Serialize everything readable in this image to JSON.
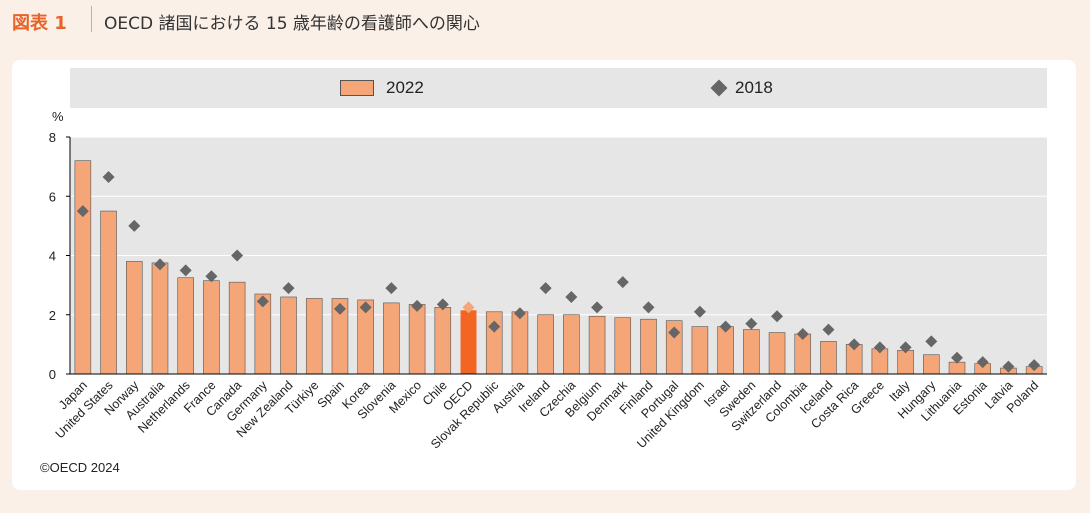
{
  "header": {
    "figure_label": "図表 1",
    "title": "OECD 諸国における 15 歳年齢の看護師への関心"
  },
  "legend": {
    "bar_label": "2022",
    "marker_label": "2018"
  },
  "footer": {
    "copyright": "©OECD 2024"
  },
  "colors": {
    "bar": "#f4a678",
    "bar_highlight": "#f26522",
    "marker": "#666666",
    "marker_highlight": "#f4a678",
    "grid_bg": "#e6e6e6",
    "accent": "#e8632a"
  },
  "chart_data": {
    "type": "bar",
    "unit_label": "%",
    "ylim": [
      0,
      8
    ],
    "yticks": [
      0,
      2,
      4,
      6,
      8
    ],
    "categories": [
      "Japan",
      "United States",
      "Norway",
      "Australia",
      "Netherlands",
      "France",
      "Canada",
      "Germany",
      "New Zealand",
      "Türkiye",
      "Spain",
      "Korea",
      "Slovenia",
      "Mexico",
      "Chile",
      "OECD",
      "Slovak Republic",
      "Austria",
      "Ireland",
      "Czechia",
      "Belgium",
      "Denmark",
      "Finland",
      "Portugal",
      "United Kingdom",
      "Israel",
      "Sweden",
      "Switzerland",
      "Colombia",
      "Iceland",
      "Costa Rica",
      "Greece",
      "Italy",
      "Hungary",
      "Lithuania",
      "Estonia",
      "Latvia",
      "Poland"
    ],
    "highlight": "OECD",
    "series": [
      {
        "name": "2022",
        "kind": "bar",
        "values": [
          7.2,
          5.5,
          3.8,
          3.75,
          3.25,
          3.15,
          3.1,
          2.7,
          2.6,
          2.55,
          2.55,
          2.5,
          2.4,
          2.35,
          2.25,
          2.15,
          2.1,
          2.1,
          2.0,
          2.0,
          1.95,
          1.9,
          1.85,
          1.8,
          1.6,
          1.6,
          1.5,
          1.4,
          1.35,
          1.1,
          1.0,
          0.85,
          0.8,
          0.65,
          0.4,
          0.35,
          0.2,
          0.25
        ]
      },
      {
        "name": "2018",
        "kind": "marker",
        "values": [
          5.5,
          6.65,
          5.0,
          3.7,
          3.5,
          3.3,
          4.0,
          2.45,
          2.9,
          null,
          2.2,
          2.25,
          2.9,
          2.3,
          2.35,
          2.25,
          1.6,
          2.05,
          2.9,
          2.6,
          2.25,
          3.1,
          2.25,
          1.4,
          2.1,
          1.6,
          1.7,
          1.95,
          1.35,
          1.5,
          1.0,
          0.9,
          0.9,
          1.1,
          0.55,
          0.4,
          0.25,
          0.3
        ]
      }
    ]
  }
}
